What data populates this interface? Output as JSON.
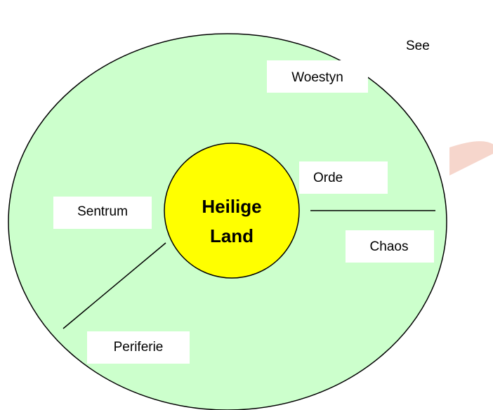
{
  "diagram": {
    "outer_label": "See",
    "center": {
      "line1": "Heilige",
      "line2": "Land"
    },
    "labels": [
      "Woestyn",
      "Orde",
      "Sentrum",
      "Chaos",
      "Periferie"
    ]
  }
}
